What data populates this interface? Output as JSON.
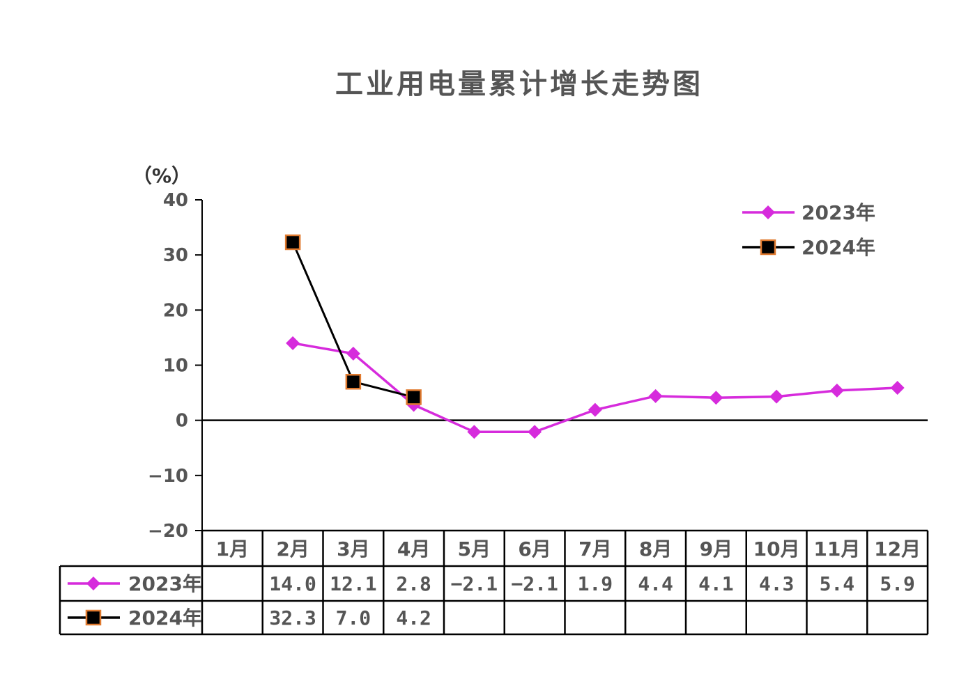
{
  "chart_data": {
    "type": "line",
    "title": "工业用电量累计增长走势图",
    "ylabel": "（%）",
    "ylim": [
      -20,
      40
    ],
    "yticks": [
      "40",
      "30",
      "20",
      "10",
      "0",
      "−10",
      "−20"
    ],
    "ytick_values": [
      40,
      30,
      20,
      10,
      0,
      -10,
      -20
    ],
    "categories": [
      "1月",
      "2月",
      "3月",
      "4月",
      "5月",
      "6月",
      "7月",
      "8月",
      "9月",
      "10月",
      "11月",
      "12月"
    ],
    "legend_position": "top-right",
    "series": [
      {
        "name": "2023年",
        "color": "#d62bdc",
        "marker": "diamond",
        "values": [
          null,
          14.0,
          12.1,
          2.8,
          -2.1,
          -2.1,
          1.9,
          4.4,
          4.1,
          4.3,
          5.4,
          5.9
        ],
        "labels": [
          "",
          "14.0",
          "12.1",
          "2.8",
          "−2.1",
          "−2.1",
          "1.9",
          "4.4",
          "4.1",
          "4.3",
          "5.4",
          "5.9"
        ]
      },
      {
        "name": "2024年",
        "color": "#000000",
        "marker": "square",
        "marker_edge": "#e07a2f",
        "values": [
          null,
          32.3,
          7.0,
          4.2,
          null,
          null,
          null,
          null,
          null,
          null,
          null,
          null
        ],
        "labels": [
          "",
          "32.3",
          "7.0",
          "4.2",
          "",
          "",
          "",
          "",
          "",
          "",
          "",
          ""
        ]
      }
    ]
  }
}
